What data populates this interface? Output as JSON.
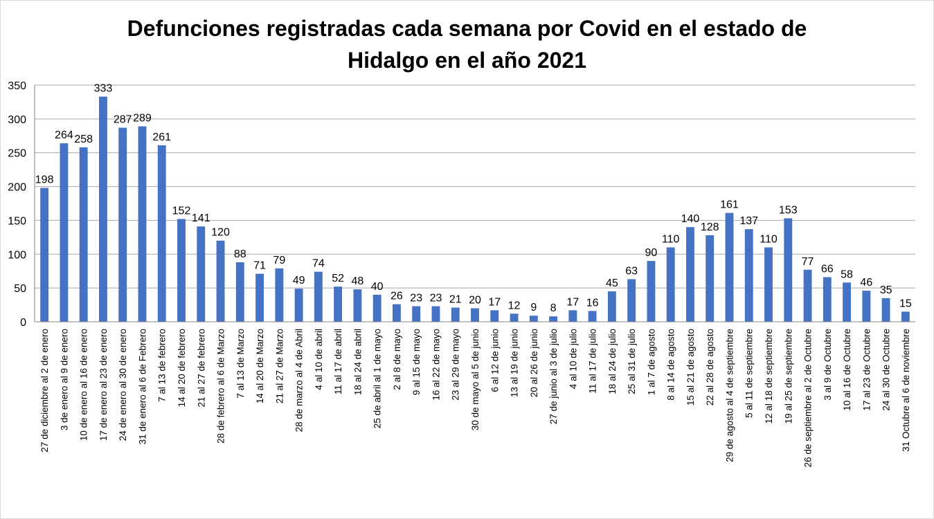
{
  "chart_data": {
    "type": "bar",
    "title_lines": [
      "Defunciones registradas cada semana por Covid en el estado de",
      "Hidalgo en el año 2021"
    ],
    "xlabel": "",
    "ylabel": "",
    "ylim": [
      0,
      350
    ],
    "yticks": [
      0,
      50,
      100,
      150,
      200,
      250,
      300,
      350
    ],
    "grid": true,
    "legend": "none",
    "bar_color": "#4472C4",
    "grid_color": "#a6a6a6",
    "categories": [
      "27 de diciembre al 2 de enero",
      "3 de enero al 9 de enero",
      "10 de enero al 16 de enero",
      "17 de enero al 23 de enero",
      "24 de enero al 30 de enero",
      "31 de enero al 6 de Febrero",
      "7 al 13 de febrero",
      "14 al 20 de febrero",
      "21 al 27 de febrero",
      "28 de febrero al  6 de Marzo",
      "7 al 13 de Marzo",
      "14 al 20 de Marzo",
      "21 al 27 de Marzo",
      "28 de marzo al 4 de Abril",
      "4 al 10 de abril",
      "11 al 17 de abril",
      "18 al 24 de abril",
      "25 de abril al 1 de mayo",
      "2 al 8 de mayo",
      "9 al 15 de mayo",
      "16 al 22 de mayo",
      "23 al 29 de mayo",
      "30 de mayo al 5 de junio",
      "6 al 12 de junio",
      "13 al 19 de junio",
      "20 al 26 de junio",
      "27 de junio al 3 de julio",
      "4 al 10 de julio",
      "11 al 17 de julio",
      "18 al 24 de julio",
      "25 al 31 de julio",
      "1 al 7 de agosto",
      "8 al 14 de agosto",
      "15 al 21 de agosto",
      "22 al 28 de agosto",
      "29 de agosto al 4 de septiembre",
      "5 al 11 de septiembre",
      "12 al 18 de septiembre",
      "19 al 25 de septiembre",
      "26 de septiembre al 2 de Octubre",
      "3 al 9 de Octubre",
      "10 al 16 de Octubre",
      "17 al 23 de Octubre",
      "24 al 30 de Octubre",
      "31 Octubre al 6 de noviembre"
    ],
    "values": [
      198,
      264,
      258,
      333,
      287,
      289,
      261,
      152,
      141,
      120,
      88,
      71,
      79,
      49,
      74,
      52,
      48,
      40,
      26,
      23,
      23,
      21,
      20,
      17,
      12,
      9,
      8,
      17,
      16,
      45,
      63,
      90,
      110,
      140,
      128,
      161,
      137,
      110,
      153,
      77,
      66,
      58,
      46,
      35,
      15
    ]
  }
}
